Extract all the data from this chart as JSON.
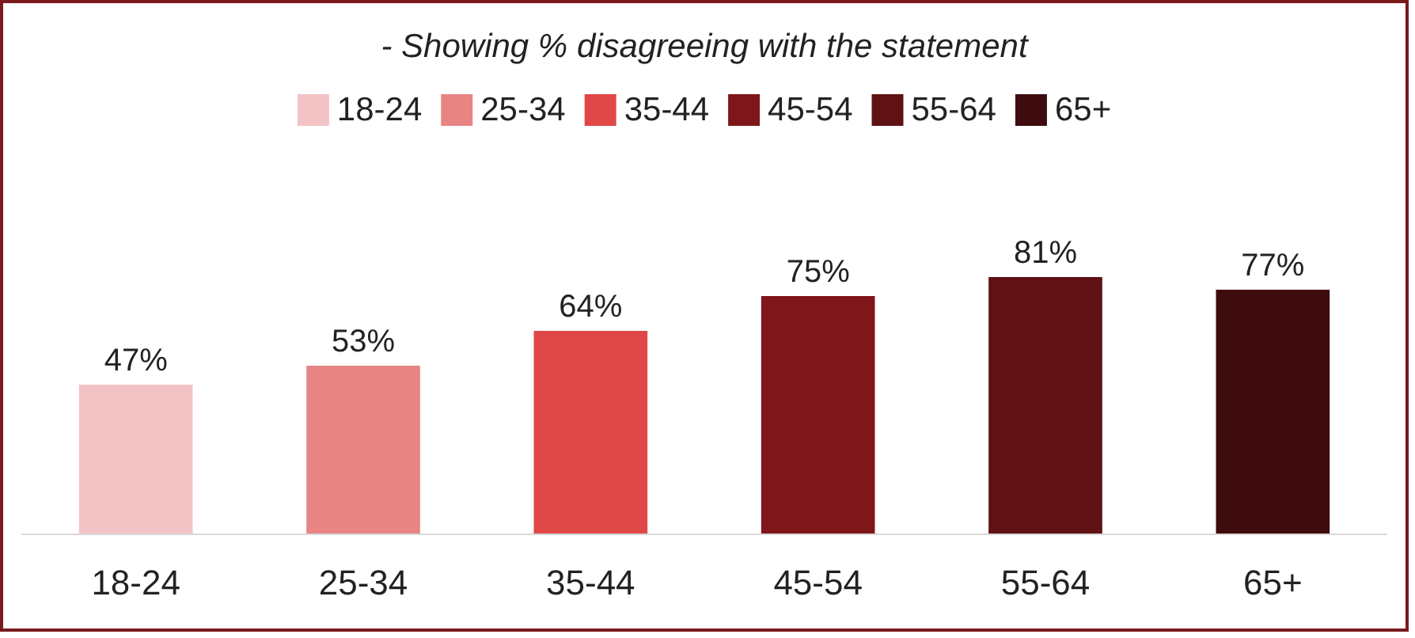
{
  "chart_data": {
    "type": "bar",
    "subtitle": "- Showing % disagreeing with the statement",
    "categories": [
      "18-24",
      "25-34",
      "35-44",
      "45-54",
      "55-64",
      "65+"
    ],
    "series": [
      {
        "name": "18-24",
        "color": "#f2c3c5",
        "values": [
          47,
          null,
          null,
          null,
          null,
          null
        ],
        "value_labels": [
          "47%",
          null,
          null,
          null,
          null,
          null
        ]
      },
      {
        "name": "25-34",
        "color": "#e88484",
        "values": [
          null,
          53,
          null,
          null,
          null,
          null
        ],
        "value_labels": [
          null,
          "53%",
          null,
          null,
          null,
          null
        ]
      },
      {
        "name": "35-44",
        "color": "#e04848",
        "values": [
          null,
          null,
          64,
          null,
          null,
          null
        ],
        "value_labels": [
          null,
          null,
          "64%",
          null,
          null,
          null
        ]
      },
      {
        "name": "45-54",
        "color": "#7f1619",
        "values": [
          null,
          null,
          null,
          75,
          null,
          null
        ],
        "value_labels": [
          null,
          null,
          null,
          "75%",
          null,
          null
        ]
      },
      {
        "name": "55-64",
        "color": "#5f1113",
        "values": [
          null,
          null,
          null,
          null,
          81,
          null
        ],
        "value_labels": [
          null,
          null,
          null,
          null,
          "81%",
          null
        ]
      },
      {
        "name": "65+",
        "color": "#3e0c0e",
        "values": [
          null,
          null,
          null,
          null,
          null,
          77
        ],
        "value_labels": [
          null,
          null,
          null,
          null,
          null,
          "77%"
        ]
      }
    ],
    "legend": "top",
    "grid": false
  }
}
